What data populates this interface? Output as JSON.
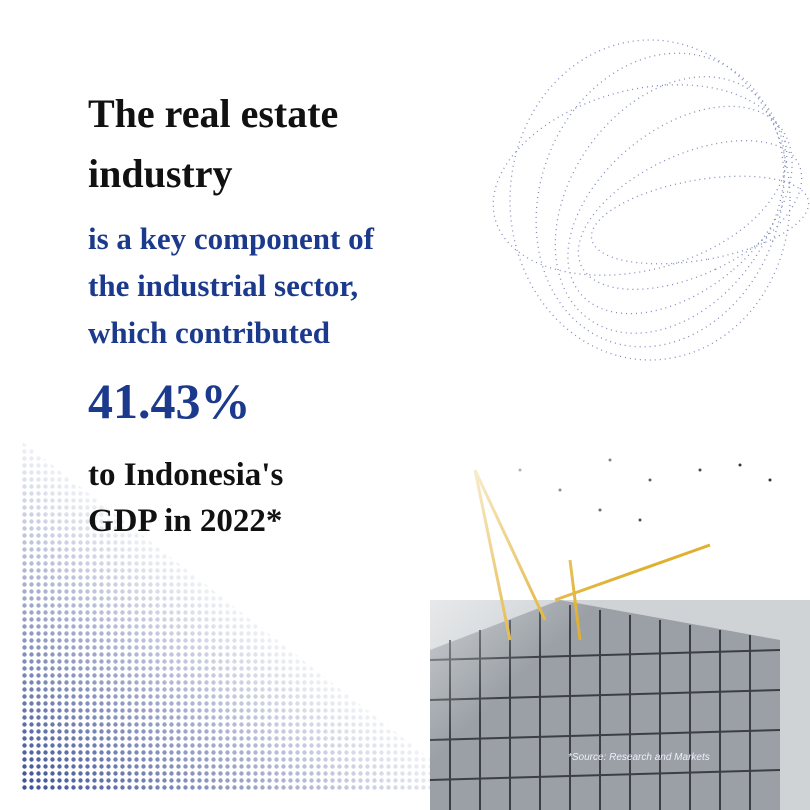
{
  "headline": {
    "lines": [
      "The real estate",
      "industry"
    ]
  },
  "statement": {
    "lines": [
      "is a key component of",
      "the industrial sector,",
      "which contributed"
    ]
  },
  "highlight": "41.43%",
  "conclusion": {
    "lines": [
      "to Indonesia's",
      "GDP in 2022*"
    ]
  },
  "source": "*Source: Research and Markets"
}
